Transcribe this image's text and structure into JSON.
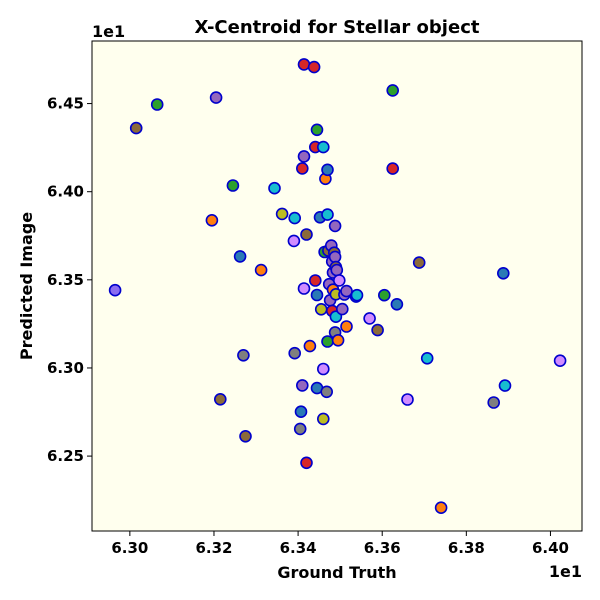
{
  "chart_data": {
    "type": "scatter",
    "title": "X-Centroid for Stellar object",
    "xlabel": "Ground Truth",
    "ylabel": "Predicted Image",
    "x_offset_label": "1e1",
    "y_offset_label": "1e1",
    "xlim": [
      6.291,
      6.4075
    ],
    "ylim": [
      6.2075,
      6.4855
    ],
    "xticks": [
      6.3,
      6.32,
      6.34,
      6.36,
      6.38,
      6.4
    ],
    "xtick_labels": [
      "6.30",
      "6.32",
      "6.34",
      "6.36",
      "6.38",
      "6.40"
    ],
    "yticks": [
      6.25,
      6.3,
      6.35,
      6.4,
      6.45
    ],
    "ytick_labels": [
      "6.25",
      "6.30",
      "6.35",
      "6.40",
      "6.45"
    ],
    "grid": false,
    "background_color": "#ffffee",
    "marker_edge_color": "#0000cc",
    "points": [
      {
        "x": 6.2965,
        "y": 6.3441,
        "color": "#8a6cf0"
      },
      {
        "x": 6.3015,
        "y": 6.4361,
        "color": "#8b6a3a"
      },
      {
        "x": 6.3065,
        "y": 6.4495,
        "color": "#2ca02c"
      },
      {
        "x": 6.3195,
        "y": 6.3838,
        "color": "#ff7f0e"
      },
      {
        "x": 6.3205,
        "y": 6.4534,
        "color": "#9467bd"
      },
      {
        "x": 6.3215,
        "y": 6.2822,
        "color": "#8b6a3a"
      },
      {
        "x": 6.3245,
        "y": 6.4035,
        "color": "#2ca02c"
      },
      {
        "x": 6.3262,
        "y": 6.3633,
        "color": "#2a7ab5"
      },
      {
        "x": 6.327,
        "y": 6.3072,
        "color": "#7f7f7f"
      },
      {
        "x": 6.3275,
        "y": 6.2612,
        "color": "#8b6a3a"
      },
      {
        "x": 6.3312,
        "y": 6.3555,
        "color": "#ff7f0e"
      },
      {
        "x": 6.3344,
        "y": 6.402,
        "color": "#17becf"
      },
      {
        "x": 6.3362,
        "y": 6.3874,
        "color": "#bcbd22"
      },
      {
        "x": 6.3392,
        "y": 6.385,
        "color": "#17becf"
      },
      {
        "x": 6.339,
        "y": 6.3721,
        "color": "#d08cff"
      },
      {
        "x": 6.3392,
        "y": 6.3084,
        "color": "#7f7f7f"
      },
      {
        "x": 6.3405,
        "y": 6.2654,
        "color": "#7f7f7f"
      },
      {
        "x": 6.3407,
        "y": 6.2752,
        "color": "#2a7ab5"
      },
      {
        "x": 6.341,
        "y": 6.2901,
        "color": "#9467bd"
      },
      {
        "x": 6.341,
        "y": 6.4132,
        "color": "#d62728"
      },
      {
        "x": 6.3414,
        "y": 6.42,
        "color": "#9467bd"
      },
      {
        "x": 6.3414,
        "y": 6.4722,
        "color": "#d62728"
      },
      {
        "x": 6.3414,
        "y": 6.3451,
        "color": "#d08cff"
      },
      {
        "x": 6.342,
        "y": 6.3757,
        "color": "#8b6a3a"
      },
      {
        "x": 6.342,
        "y": 6.2462,
        "color": "#d62728"
      },
      {
        "x": 6.3428,
        "y": 6.3124,
        "color": "#ff7f0e"
      },
      {
        "x": 6.3438,
        "y": 6.4707,
        "color": "#d62728"
      },
      {
        "x": 6.3441,
        "y": 6.4253,
        "color": "#d62728"
      },
      {
        "x": 6.3441,
        "y": 6.3496,
        "color": "#d62728"
      },
      {
        "x": 6.3445,
        "y": 6.4351,
        "color": "#2ca02c"
      },
      {
        "x": 6.3445,
        "y": 6.3414,
        "color": "#2a7ab5"
      },
      {
        "x": 6.3445,
        "y": 6.2886,
        "color": "#2a7ab5"
      },
      {
        "x": 6.3452,
        "y": 6.3855,
        "color": "#2a7ab5"
      },
      {
        "x": 6.3455,
        "y": 6.3333,
        "color": "#bcbd22"
      },
      {
        "x": 6.346,
        "y": 6.2711,
        "color": "#bcbd22"
      },
      {
        "x": 6.346,
        "y": 6.4253,
        "color": "#17becf"
      },
      {
        "x": 6.346,
        "y": 6.2994,
        "color": "#d08cff"
      },
      {
        "x": 6.3463,
        "y": 6.3658,
        "color": "#2ca02c"
      },
      {
        "x": 6.3465,
        "y": 6.4073,
        "color": "#ff7f0e"
      },
      {
        "x": 6.3468,
        "y": 6.2865,
        "color": "#7f7f7f"
      },
      {
        "x": 6.347,
        "y": 6.4124,
        "color": "#2a7ab5"
      },
      {
        "x": 6.347,
        "y": 6.387,
        "color": "#17becf"
      },
      {
        "x": 6.347,
        "y": 6.315,
        "color": "#2ca02c"
      },
      {
        "x": 6.3472,
        "y": 6.3666,
        "color": "#8b6a3a"
      },
      {
        "x": 6.3474,
        "y": 6.3475,
        "color": "#9467bd"
      },
      {
        "x": 6.3476,
        "y": 6.3384,
        "color": "#9467bd"
      },
      {
        "x": 6.3479,
        "y": 6.3694,
        "color": "#9467bd"
      },
      {
        "x": 6.3481,
        "y": 6.3604,
        "color": "#9467bd"
      },
      {
        "x": 6.3481,
        "y": 6.3324,
        "color": "#d62728"
      },
      {
        "x": 6.3483,
        "y": 6.3444,
        "color": "#ff7f0e"
      },
      {
        "x": 6.3483,
        "y": 6.3541,
        "color": "#9467bd"
      },
      {
        "x": 6.3486,
        "y": 6.3654,
        "color": "#8b6a3a"
      },
      {
        "x": 6.3488,
        "y": 6.363,
        "color": "#9467bd"
      },
      {
        "x": 6.3488,
        "y": 6.3806,
        "color": "#9467bd"
      },
      {
        "x": 6.3488,
        "y": 6.3202,
        "color": "#7f7f7f"
      },
      {
        "x": 6.349,
        "y": 6.3418,
        "color": "#bcbd22"
      },
      {
        "x": 6.349,
        "y": 6.3572,
        "color": "#8b6a3a"
      },
      {
        "x": 6.349,
        "y": 6.3291,
        "color": "#17becf"
      },
      {
        "x": 6.3492,
        "y": 6.3555,
        "color": "#9467bd"
      },
      {
        "x": 6.3495,
        "y": 6.3157,
        "color": "#ff7f0e"
      },
      {
        "x": 6.3498,
        "y": 6.3497,
        "color": "#d08cff"
      },
      {
        "x": 6.3505,
        "y": 6.3334,
        "color": "#9467bd"
      },
      {
        "x": 6.351,
        "y": 6.3417,
        "color": "#9467bd"
      },
      {
        "x": 6.3515,
        "y": 6.3235,
        "color": "#ff7f0e"
      },
      {
        "x": 6.3515,
        "y": 6.3436,
        "color": "#9467bd"
      },
      {
        "x": 6.3538,
        "y": 6.3405,
        "color": "#17becf"
      },
      {
        "x": 6.354,
        "y": 6.3413,
        "color": "#17becf"
      },
      {
        "x": 6.357,
        "y": 6.3281,
        "color": "#d08cff"
      },
      {
        "x": 6.3589,
        "y": 6.3215,
        "color": "#8b6a3a"
      },
      {
        "x": 6.3605,
        "y": 6.3413,
        "color": "#2ca02c"
      },
      {
        "x": 6.3625,
        "y": 6.4131,
        "color": "#d62728"
      },
      {
        "x": 6.3625,
        "y": 6.4575,
        "color": "#2ca02c"
      },
      {
        "x": 6.3635,
        "y": 6.3361,
        "color": "#2a7ab5"
      },
      {
        "x": 6.366,
        "y": 6.2821,
        "color": "#d08cff"
      },
      {
        "x": 6.3688,
        "y": 6.3598,
        "color": "#8b6a3a"
      },
      {
        "x": 6.3707,
        "y": 6.3055,
        "color": "#17becf"
      },
      {
        "x": 6.374,
        "y": 6.2207,
        "color": "#ff7f0e"
      },
      {
        "x": 6.3865,
        "y": 6.2804,
        "color": "#7f7f7f"
      },
      {
        "x": 6.3888,
        "y": 6.3537,
        "color": "#2a7ab5"
      },
      {
        "x": 6.3892,
        "y": 6.29,
        "color": "#17becf"
      },
      {
        "x": 6.4023,
        "y": 6.3041,
        "color": "#d08cff"
      }
    ]
  }
}
